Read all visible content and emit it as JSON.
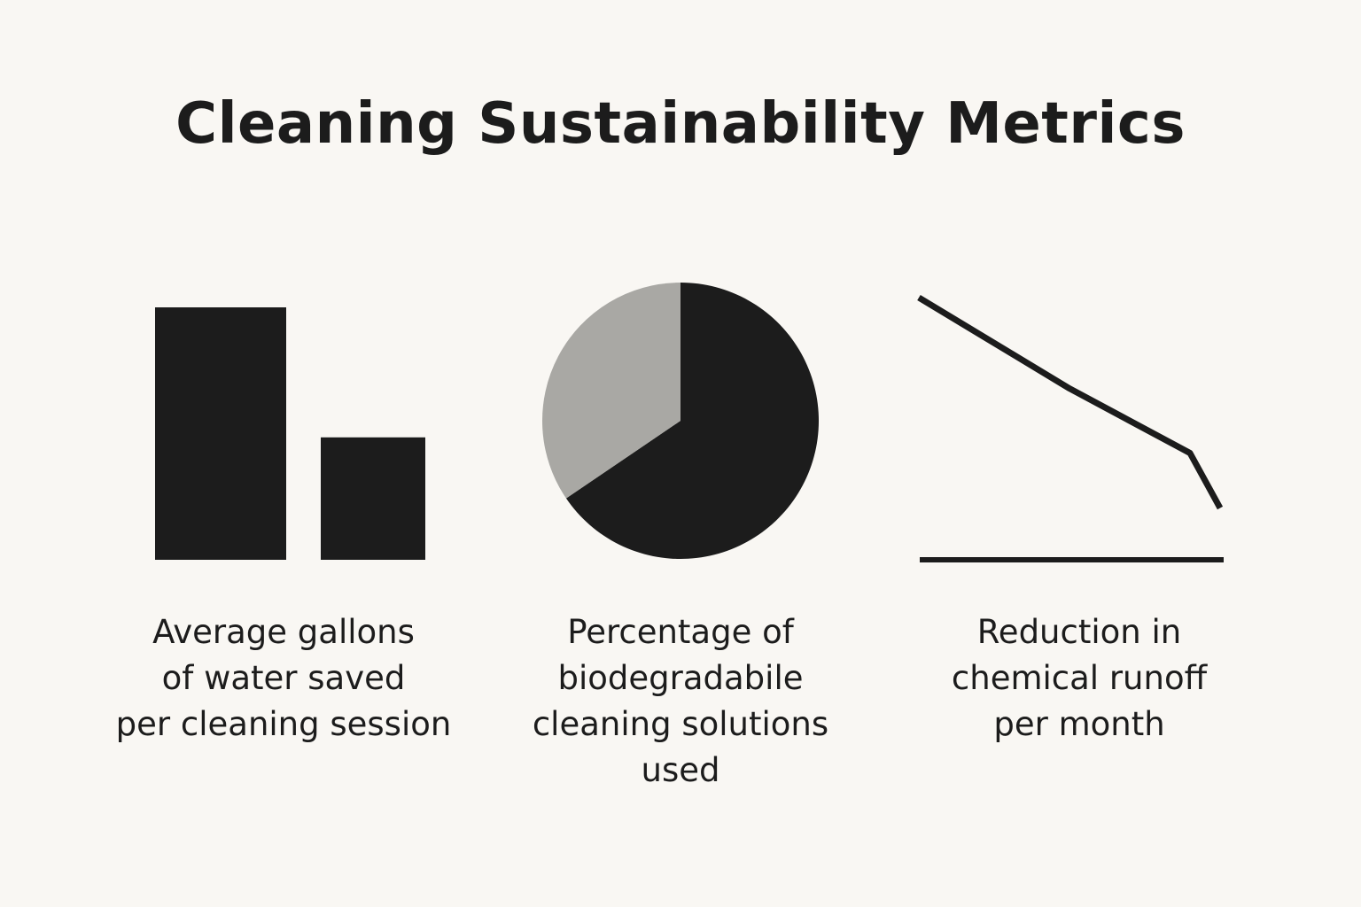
{
  "title": "Cleaning Sustainability Metrics",
  "colors": {
    "background": "#f9f7f3",
    "dark": "#1c1c1c",
    "gray": "#a9a8a4"
  },
  "chart_data": [
    {
      "type": "bar",
      "categories": [
        "",
        ""
      ],
      "values": [
        100,
        48.5
      ],
      "ylim": [
        0,
        100
      ],
      "title": "",
      "grid": false,
      "caption_lines": [
        "Average gallons",
        "of water saved",
        "per cleaning session"
      ]
    },
    {
      "type": "pie",
      "labels": [
        "",
        ""
      ],
      "values": [
        65.5,
        34.5
      ],
      "slice_colors": [
        "#1c1c1c",
        "#a9a8a4"
      ],
      "title": "",
      "caption_lines": [
        "Percentage of",
        "biodegradabile",
        "cleaning solutions",
        "used"
      ]
    },
    {
      "type": "line",
      "x": [
        0,
        0.5,
        0.9,
        1
      ],
      "y": [
        100,
        62,
        35,
        12
      ],
      "xlim": [
        0,
        1
      ],
      "ylim": [
        0,
        100
      ],
      "title": "",
      "grid": false,
      "caption_lines": [
        "Reduction in",
        "chemical runoff",
        "per month"
      ]
    }
  ]
}
